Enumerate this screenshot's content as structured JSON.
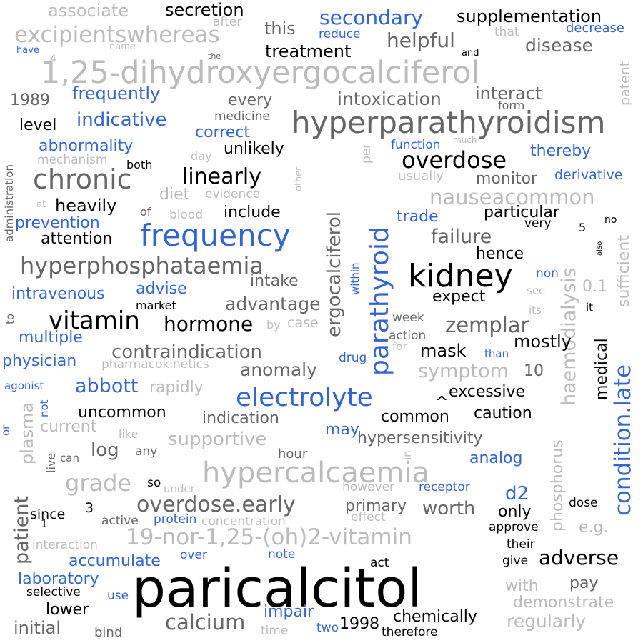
{
  "colors": {
    "black": "#000000",
    "dark": "#666666",
    "light": "#bbbbbb",
    "blue": "#3366cc"
  },
  "words": {
    "paricalcitol": "paricalcitol",
    "hypercalcaemia": "hypercalcaemia",
    "hyperparathyroidism": "hyperparathyroidism",
    "dihydroxyergocalciferol": "1,25-dihydroxyergocalciferol",
    "kidney": "kidney",
    "frequency": "frequency",
    "electrolyte": "electrolyte",
    "chronic": "chronic",
    "parathyroid": "parathyroid",
    "overdose": "overdose",
    "hyperphosphataemia": "hyperphosphataemia",
    "vitamin": "vitamin",
    "excipientswhereas": "excipientswhereas",
    "nauseacommon": "nauseacommon",
    "nor_vitamin": "19-nor-1,25-(oh)2-vitamin",
    "overdose_early": "overdose.early",
    "condition_late": "condition.late",
    "ergocalciferol": "ergocalciferol",
    "haemodialysis": "haemodialysis",
    "linearly": "linearly",
    "hormone": "hormone",
    "contraindication": "contraindication",
    "zemplar": "zemplar",
    "grade": "grade",
    "calcium": "calcium",
    "adverse": "adverse",
    "patient_vertical": "patient",
    "secondary": "secondary",
    "helpful": "helpful",
    "indicative": "indicative",
    "supportive": "supportive",
    "phosphorus": "phosphorus",
    "sufficient": "sufficient",
    "anomaly": "anomaly",
    "symptom": "symptom",
    "failure": "failure",
    "advantage": "advantage",
    "abbott": "abbott",
    "intoxication": "intoxication",
    "disease": "disease",
    "regularly": "regularly",
    "demonstrate": "demonstrate",
    "frequently": "frequently",
    "associate": "associate",
    "secretion": "secretion",
    "supplementation": "supplementation",
    "treatment": "treatment",
    "this": "this",
    "after": "after",
    "reduce": "reduce",
    "that": "that",
    "decrease": "decrease",
    "have": "have",
    "name": "name",
    "and": "and",
    "the": "the",
    "four": "4",
    "patent": "patent",
    "year1989": "1989",
    "every": "every",
    "interact": "interact",
    "form": "form",
    "level": "level",
    "medicine": "medicine",
    "correct": "correct",
    "much": "much",
    "abnormality": "abnormality",
    "unlikely": "unlikely",
    "function": "function",
    "thereby": "thereby",
    "mechanism": "mechanism",
    "day": "day",
    "per": "per",
    "both": "both",
    "other": "other",
    "usually": "usually",
    "monitor": "monitor",
    "derivative": "derivative",
    "administration": "administration",
    "diet": "diet",
    "evidence": "evidence",
    "at": "at",
    "heavily": "heavily",
    "of": "of",
    "blood": "blood",
    "include": "include",
    "trade": "trade",
    "particular": "particular",
    "no": "no",
    "prevention": "prevention",
    "very": "very",
    "five": "5",
    "attention": "attention",
    "hence": "hence",
    "also": "also",
    "intake": "intake",
    "non": "non",
    "intravenous": "intravenous",
    "advise": "advise",
    "within": "within",
    "expect": "expect",
    "see": "see",
    "zero_one": "0.1",
    "market": "market",
    "its": "its",
    "it": "it",
    "to": "to",
    "medical": "medical",
    "by": "by",
    "case": "case",
    "week": "week",
    "multiple": "multiple",
    "mostly": "mostly",
    "action": "action",
    "for": "for",
    "mask": "mask",
    "physician": "physician",
    "drug": "drug",
    "than": "than",
    "pharmacokinetics": "pharmacokinetics",
    "ten": "10",
    "agonist": "agonist",
    "rapidly": "rapidly",
    "plasma": "plasma",
    "not": "not",
    "excessive": "excessive",
    "uncommon": "uncommon",
    "common": "common",
    "caution": "caution",
    "caret": "^",
    "or": "or",
    "current": "current",
    "indication": "indication",
    "like": "like",
    "may": "may",
    "hypersensitivity": "hypersensitivity",
    "live": "live",
    "can": "can",
    "log": "log",
    "any": "any",
    "hour": "hour",
    "in": "in",
    "analog": "analog",
    "so": "so",
    "under": "under",
    "however": "however",
    "receptor": "receptor",
    "d2": "d2",
    "since": "since",
    "three": "3",
    "one": "1",
    "primary": "primary",
    "worth": "worth",
    "only": "only",
    "dose": "dose",
    "active": "active",
    "protein": "protein",
    "concentration": "concentration",
    "effect": "effect",
    "approve": "approve",
    "eg": "e.g.",
    "interaction": "interaction",
    "their": "their",
    "accumulate": "accumulate",
    "over": "over",
    "note": "note",
    "act": "act",
    "give": "give",
    "laboratory": "laboratory",
    "pay": "pay",
    "selective": "selective",
    "use": "use",
    "with": "with",
    "lower": "lower",
    "impair": "impair",
    "chemically": "chemically",
    "initial": "initial",
    "bind": "bind",
    "time": "time",
    "two": "two",
    "year1998": "1998",
    "therefore": "therefore"
  }
}
